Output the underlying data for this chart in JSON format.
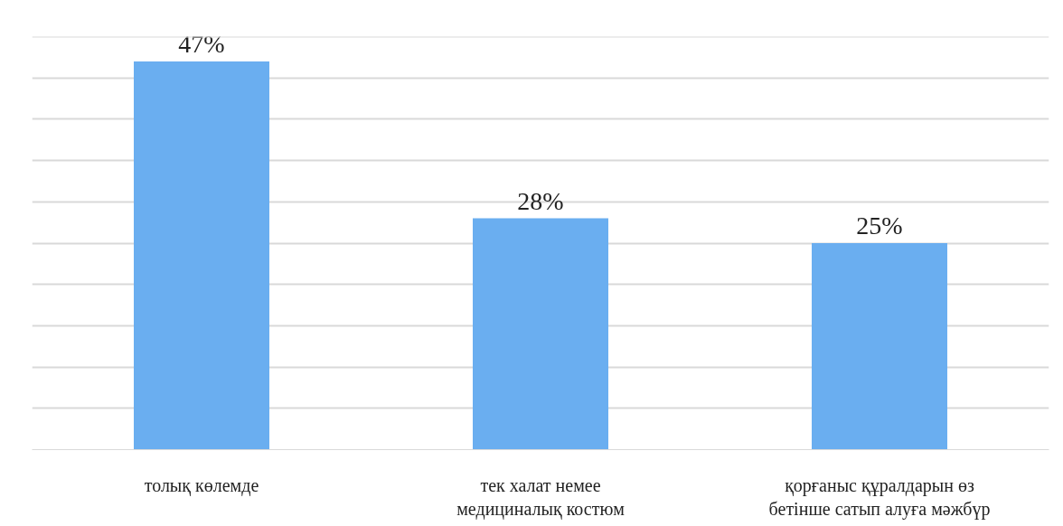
{
  "chart_data": {
    "type": "bar",
    "categories": [
      "толық көлемде",
      "тек халат немее\nмедициналық костюм",
      "қорғаныс құралдарын өз\nбетінше сатып алуға мәжбүр"
    ],
    "values": [
      47,
      28,
      25
    ],
    "value_labels": [
      "47%",
      "28%",
      "25%"
    ],
    "color": "#6aaef0",
    "ylim": [
      0,
      50
    ],
    "yticks": [
      {
        "value": 0,
        "label": null
      },
      {
        "value": 5,
        "label": null
      },
      {
        "value": 10,
        "label": null
      },
      {
        "value": 15,
        "label": null
      },
      {
        "value": 20,
        "label": null
      },
      {
        "value": 25,
        "label": null
      },
      {
        "value": 30,
        "label": null
      },
      {
        "value": 35,
        "label": null
      },
      {
        "value": 40,
        "label": null
      },
      {
        "value": 45,
        "label": null
      },
      {
        "value": 50,
        "label": null
      }
    ],
    "tick_labels": "x",
    "grid": "y"
  }
}
